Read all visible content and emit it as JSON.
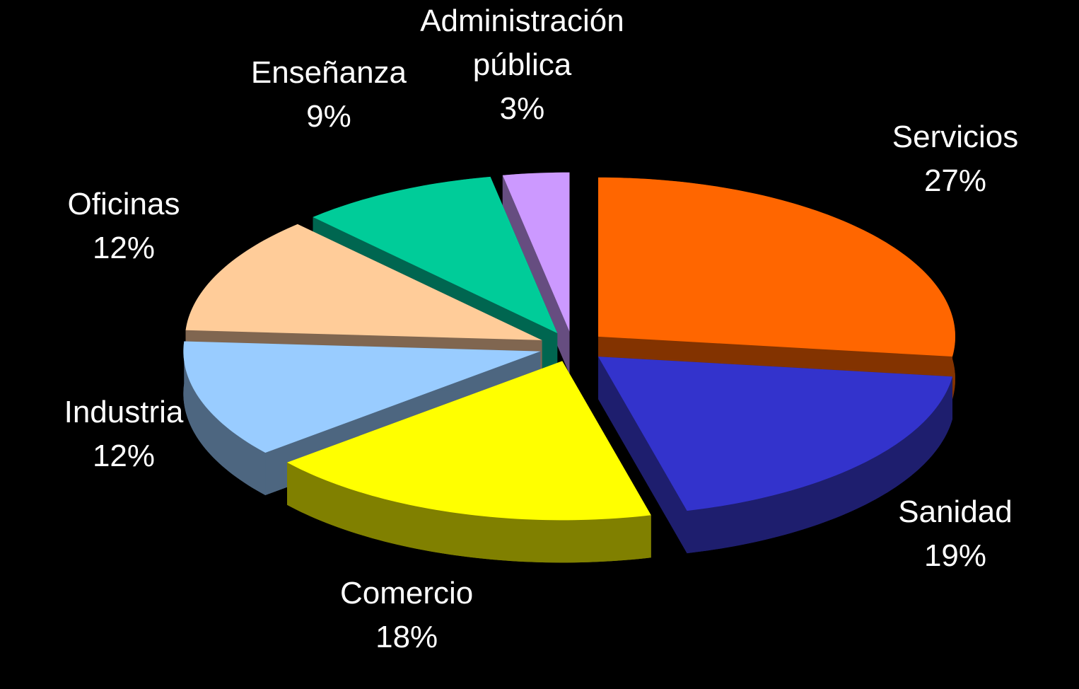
{
  "chart_data": {
    "type": "pie",
    "categories": [
      "Servicios",
      "Sanidad",
      "Comercio",
      "Industria",
      "Oficinas",
      "Enseñanza",
      "Administración pública"
    ],
    "values": [
      27,
      19,
      18,
      12,
      12,
      9,
      3
    ],
    "value_labels": [
      "27%",
      "19%",
      "18%",
      "12%",
      "12%",
      "9%",
      "3%"
    ],
    "colors": [
      "#ff6600",
      "#3333cc",
      "#ffff00",
      "#99ccff",
      "#ffcc99",
      "#00cc99",
      "#cc99ff"
    ],
    "side_colors": [
      "#833300",
      "#1e1e6e",
      "#808000",
      "#4d6680",
      "#806650",
      "#006650",
      "#664d80"
    ]
  }
}
